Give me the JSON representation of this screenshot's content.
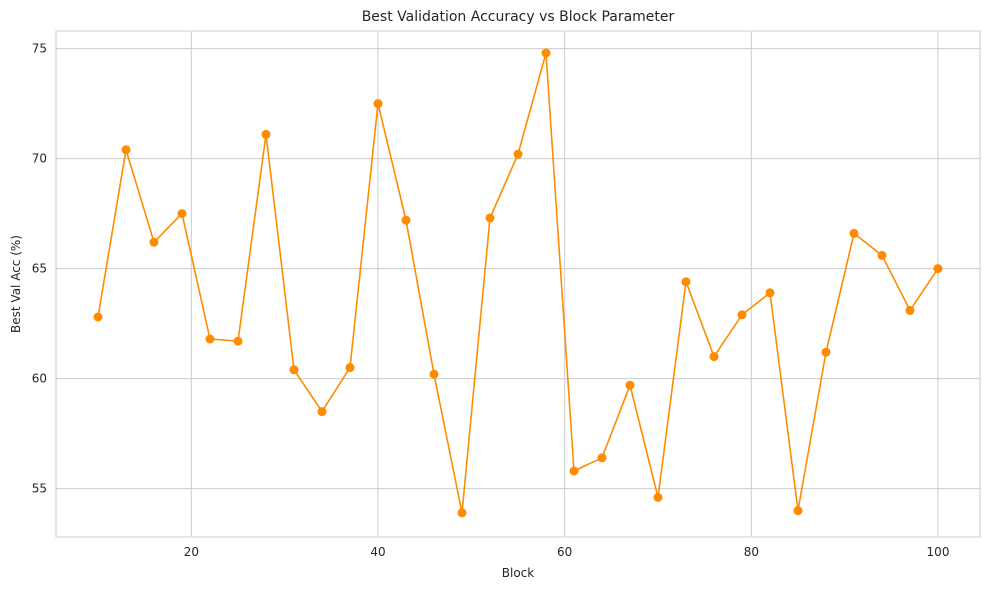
{
  "chart_data": {
    "type": "line",
    "title": "Best Validation Accuracy vs Block Parameter",
    "xlabel": "Block",
    "ylabel": "Best Val Acc (%)",
    "xlim": [
      5.5,
      104.5
    ],
    "ylim": [
      52.8,
      75.8
    ],
    "xticks": [
      20,
      40,
      60,
      80,
      100
    ],
    "yticks": [
      55,
      60,
      65,
      70,
      75
    ],
    "grid": true,
    "line_color": "#ff8c00",
    "marker": "circle",
    "x": [
      10,
      13,
      16,
      19,
      22,
      25,
      28,
      31,
      34,
      37,
      40,
      43,
      46,
      49,
      52,
      55,
      58,
      61,
      64,
      67,
      70,
      73,
      76,
      79,
      82,
      85,
      88,
      91,
      94,
      97,
      100
    ],
    "series": [
      {
        "values": [
          62.8,
          70.4,
          66.2,
          67.5,
          61.8,
          61.7,
          71.1,
          60.4,
          58.5,
          60.5,
          72.5,
          67.2,
          60.2,
          53.9,
          67.3,
          70.2,
          74.8,
          55.8,
          56.4,
          59.7,
          54.6,
          64.4,
          61.0,
          62.9,
          63.9,
          54.0,
          61.2,
          66.6,
          65.6,
          63.1,
          65.0
        ]
      }
    ]
  }
}
